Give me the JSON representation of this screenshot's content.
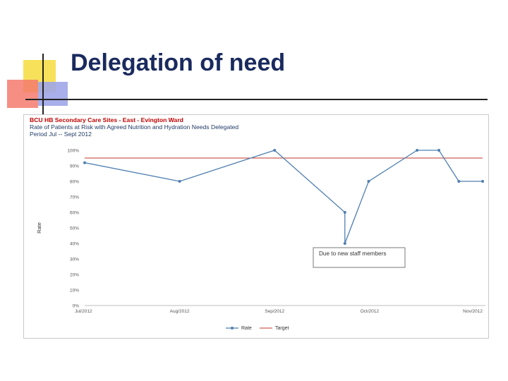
{
  "slide": {
    "title": "Delegation of need"
  },
  "chart_data": {
    "type": "line",
    "header_lines": [
      "BCU HB  Secondary Care Sites - East - Evington Ward",
      "Rate of Patients at Risk with Agreed Nutrition and Hydration Needs Delegated",
      "Period Jul -- Sept 2012"
    ],
    "ylabel": "Rate",
    "ylim": [
      0,
      100
    ],
    "y_ticks": [
      "0%",
      "10%",
      "20%",
      "30%",
      "40%",
      "50%",
      "60%",
      "70%",
      "80%",
      "90%",
      "100%"
    ],
    "x_ticks": [
      {
        "label": "Jul/2012",
        "pos": 0
      },
      {
        "label": "Aug/2012",
        "pos": 1
      },
      {
        "label": "Sep/2012",
        "pos": 2
      },
      {
        "label": "Oct/2012",
        "pos": 3
      },
      {
        "label": "Nov/2012",
        "pos": 4
      }
    ],
    "series": [
      {
        "name": "Rate",
        "color": "#4f7fb0",
        "points": [
          {
            "x": 0.0,
            "y": 92
          },
          {
            "x": 1.0,
            "y": 80
          },
          {
            "x": 2.0,
            "y": 100
          },
          {
            "x": 2.74,
            "y": 60
          },
          {
            "x": 2.74,
            "y": 40
          },
          {
            "x": 2.99,
            "y": 80
          },
          {
            "x": 3.5,
            "y": 100
          },
          {
            "x": 3.73,
            "y": 100
          },
          {
            "x": 3.94,
            "y": 80
          },
          {
            "x": 4.19,
            "y": 80
          }
        ]
      },
      {
        "name": "Target",
        "color": "#c0392b",
        "constant": 95
      }
    ],
    "annotation": {
      "text": "Due to new staff members"
    },
    "legend": {
      "placement": "bottom-center",
      "entries": [
        "Rate",
        "Target"
      ]
    }
  }
}
